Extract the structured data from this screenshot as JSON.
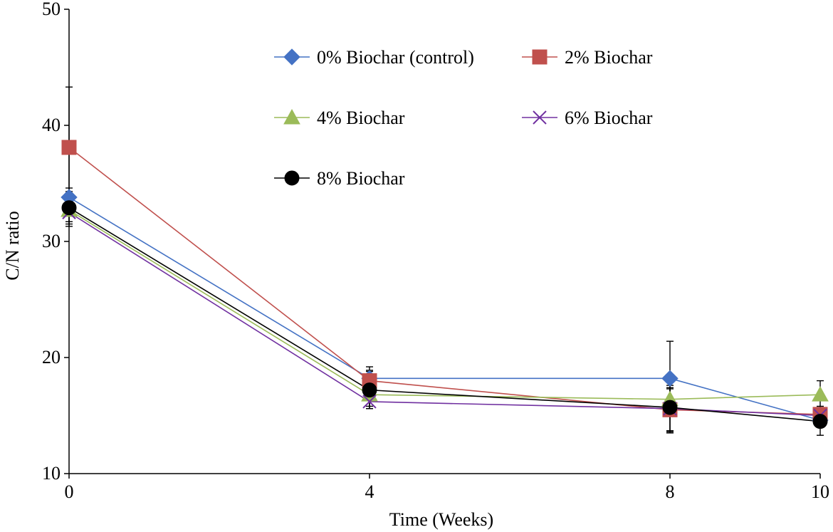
{
  "chart_data": {
    "type": "line",
    "title": "",
    "xlabel": "Time (Weeks)",
    "ylabel": "C/N ratio",
    "x": [
      0,
      4,
      8,
      10
    ],
    "x_tick_labels": [
      "0",
      "4",
      "8",
      "10"
    ],
    "xlim": [
      0,
      10
    ],
    "ylim": [
      10,
      50
    ],
    "y_ticks": [
      10,
      20,
      30,
      40,
      50
    ],
    "y_tick_labels": [
      "10",
      "20",
      "30",
      "40",
      "50"
    ],
    "grid": false,
    "legend_position": "top-center",
    "series": [
      {
        "name": "0% Biochar (control)",
        "color": "#4472C4",
        "marker": "diamond",
        "values": [
          33.8,
          18.2,
          18.2,
          14.6
        ],
        "errors": [
          0.8,
          0.7,
          3.2,
          0.6
        ]
      },
      {
        "name": "2% Biochar",
        "color": "#C0504D",
        "marker": "square",
        "values": [
          38.1,
          18.0,
          15.5,
          15.1
        ],
        "errors": [
          5.2,
          1.2,
          1.8,
          0.7
        ]
      },
      {
        "name": "4% Biochar",
        "color": "#9BBB59",
        "marker": "triangle",
        "values": [
          32.7,
          16.8,
          16.4,
          16.8
        ],
        "errors": [
          1.0,
          1.0,
          1.0,
          1.2
        ]
      },
      {
        "name": "6% Biochar",
        "color": "#7030A0",
        "marker": "x",
        "values": [
          32.5,
          16.2,
          15.6,
          15.0
        ],
        "errors": [
          1.2,
          0.6,
          2.0,
          0.6
        ]
      },
      {
        "name": "8% Biochar",
        "color": "#000000",
        "marker": "circle",
        "values": [
          32.9,
          17.2,
          15.7,
          14.5
        ],
        "errors": [
          1.4,
          1.6,
          2.2,
          1.2
        ]
      }
    ]
  }
}
